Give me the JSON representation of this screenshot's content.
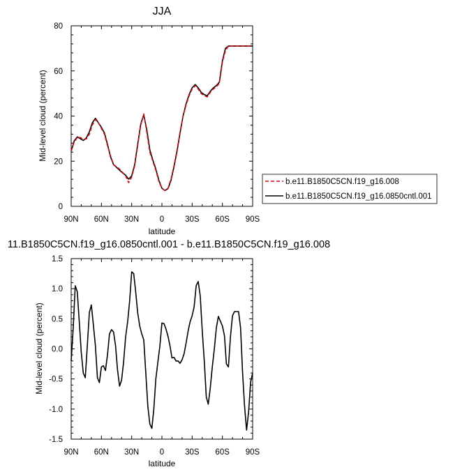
{
  "chart_data": [
    {
      "type": "line",
      "title": "JJA",
      "xlabel": "latitude",
      "ylabel": "Mid-level cloud (percent)",
      "xlim": [
        90,
        -90
      ],
      "ylim": [
        0,
        80
      ],
      "x_tick_values": [
        90,
        60,
        30,
        0,
        -30,
        -60,
        -90
      ],
      "x_tick_labels": [
        "90N",
        "60N",
        "30N",
        "0",
        "30S",
        "60S",
        "90S"
      ],
      "y_tick_values": [
        0,
        20,
        40,
        60,
        80
      ],
      "y_tick_labels": [
        "0",
        "20",
        "40",
        "60",
        "80"
      ],
      "legend_position": "right-middle",
      "grid": false,
      "series": [
        {
          "name": "b.e11.B1850C5CN.f19_g16.008",
          "color": "#e8000b",
          "dash": "dashed",
          "x": [
            90,
            87,
            84,
            81,
            78,
            75,
            72,
            69,
            66,
            63,
            60,
            57,
            54,
            51,
            48,
            45,
            42,
            39,
            36,
            33,
            30,
            27,
            24,
            21,
            18,
            15,
            12,
            9,
            6,
            3,
            0,
            -3,
            -6,
            -9,
            -12,
            -15,
            -18,
            -21,
            -24,
            -27,
            -30,
            -33,
            -36,
            -39,
            -42,
            -45,
            -48,
            -51,
            -54,
            -57,
            -60,
            -63,
            -66,
            -69,
            -72,
            -75,
            -78,
            -81,
            -84,
            -87,
            -90
          ],
          "y": [
            24.5,
            28.5,
            30.5,
            30.5,
            29.8,
            29.8,
            32.0,
            36.0,
            38.5,
            37.0,
            34.5,
            32.0,
            27.0,
            22.5,
            18.5,
            17.5,
            16.5,
            15.0,
            13.5,
            10.5,
            13.0,
            18.0,
            27.0,
            36.0,
            41.0,
            33.0,
            24.0,
            20.0,
            16.0,
            11.0,
            8.0,
            7.0,
            8.0,
            12.0,
            18.0,
            25.0,
            33.0,
            40.0,
            45.0,
            49.0,
            52.0,
            53.5,
            52.0,
            50.0,
            49.0,
            48.5,
            50.5,
            52.0,
            53.0,
            54.5,
            64.0,
            69.0,
            71.0,
            71.0,
            71.0,
            71.0,
            71.0,
            71.0,
            71.0,
            71.0,
            71.0
          ]
        },
        {
          "name": "b.e11.B1850C5CN.f19_g16.0850cntl.001",
          "color": "#000000",
          "dash": "solid",
          "x": [
            90,
            87,
            84,
            81,
            78,
            75,
            72,
            69,
            66,
            63,
            60,
            57,
            54,
            51,
            48,
            45,
            42,
            39,
            36,
            33,
            30,
            27,
            24,
            21,
            18,
            15,
            12,
            9,
            6,
            3,
            0,
            -3,
            -6,
            -9,
            -12,
            -15,
            -18,
            -21,
            -24,
            -27,
            -30,
            -33,
            -36,
            -39,
            -42,
            -45,
            -48,
            -51,
            -54,
            -57,
            -60,
            -63,
            -66,
            -69,
            -72,
            -75,
            -78,
            -81,
            -84,
            -87,
            -90
          ],
          "y": [
            24.3,
            29.0,
            30.8,
            30.0,
            29.2,
            30.3,
            33.0,
            37.0,
            39.0,
            37.0,
            35.0,
            32.5,
            27.5,
            22.0,
            18.5,
            17.3,
            16.0,
            14.8,
            13.8,
            12.0,
            13.5,
            18.5,
            27.5,
            36.5,
            40.5,
            34.0,
            25.0,
            20.5,
            16.5,
            11.5,
            8.0,
            7.0,
            7.8,
            11.5,
            17.5,
            24.5,
            32.5,
            40.0,
            45.5,
            49.5,
            52.5,
            54.0,
            52.5,
            50.5,
            49.5,
            49.0,
            51.0,
            52.5,
            53.5,
            55.0,
            64.5,
            70.0,
            71.0,
            71.0,
            71.0,
            71.0,
            71.0,
            71.0,
            71.0,
            71.0,
            71.0
          ]
        }
      ]
    },
    {
      "type": "line",
      "title": "11.B1850C5CN.f19_g16.0850cntl.001 - b.e11.B1850C5CN.f19_g16.008",
      "xlabel": "latitude",
      "ylabel": "Mid-level cloud (percent)",
      "xlim": [
        90,
        -90
      ],
      "ylim": [
        -1.5,
        1.5
      ],
      "x_tick_values": [
        90,
        60,
        30,
        0,
        -30,
        -60,
        -90
      ],
      "x_tick_labels": [
        "90N",
        "60N",
        "30N",
        "0",
        "30S",
        "60S",
        "90S"
      ],
      "y_tick_values": [
        -1.5,
        -1.0,
        -0.5,
        0.0,
        0.5,
        1.0,
        1.5
      ],
      "y_tick_labels": [
        "-1.5",
        "-1.0",
        "-0.5",
        "0.0",
        "0.5",
        "1.0",
        "1.5"
      ],
      "grid": false,
      "series": [
        {
          "color": "#000000",
          "dash": "solid",
          "x": [
            90,
            88,
            86,
            84,
            82,
            80,
            78,
            76,
            74,
            72,
            70,
            68,
            66,
            64,
            62,
            60,
            58,
            56,
            54,
            52,
            50,
            48,
            46,
            44,
            42,
            40,
            38,
            36,
            34,
            32,
            30,
            28,
            26,
            24,
            22,
            20,
            18,
            16,
            14,
            12,
            10,
            8,
            6,
            4,
            2,
            0,
            -2,
            -4,
            -6,
            -8,
            -10,
            -12,
            -14,
            -16,
            -18,
            -20,
            -22,
            -24,
            -26,
            -28,
            -30,
            -32,
            -34,
            -36,
            -38,
            -40,
            -42,
            -44,
            -46,
            -48,
            -50,
            -52,
            -54,
            -56,
            -58,
            -60,
            -62,
            -64,
            -66,
            -68,
            -70,
            -72,
            -74,
            -76,
            -78,
            -80,
            -82,
            -84,
            -86,
            -88,
            -90
          ],
          "y": [
            -0.2,
            0.35,
            1.05,
            0.95,
            0.45,
            -0.05,
            -0.4,
            -0.48,
            0.05,
            0.6,
            0.73,
            0.4,
            0.05,
            -0.48,
            -0.56,
            -0.3,
            -0.28,
            -0.36,
            -0.1,
            0.25,
            0.32,
            0.28,
            0.05,
            -0.35,
            -0.62,
            -0.52,
            -0.22,
            0.2,
            0.45,
            0.8,
            1.28,
            1.25,
            0.95,
            0.6,
            0.38,
            0.25,
            0.15,
            -0.4,
            -0.95,
            -1.25,
            -1.32,
            -1.0,
            -0.5,
            -0.22,
            0.05,
            0.43,
            0.42,
            0.33,
            0.21,
            0.05,
            -0.15,
            -0.14,
            -0.2,
            -0.2,
            -0.24,
            -0.18,
            -0.08,
            0.1,
            0.3,
            0.45,
            0.55,
            0.7,
            1.05,
            1.12,
            0.88,
            0.3,
            -0.2,
            -0.8,
            -0.92,
            -0.65,
            -0.3,
            0.0,
            0.35,
            0.54,
            0.46,
            0.38,
            0.22,
            -0.25,
            -0.3,
            0.2,
            0.55,
            0.62,
            0.62,
            0.62,
            0.35,
            -0.4,
            -0.95,
            -1.35,
            -1.05,
            -0.55,
            -0.4
          ]
        }
      ]
    }
  ]
}
